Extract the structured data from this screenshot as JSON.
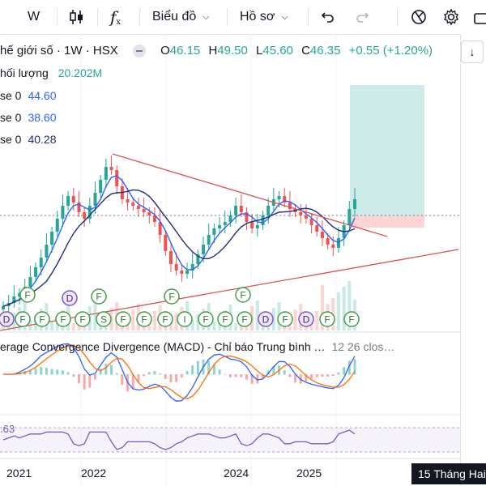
{
  "toolbar": {
    "interval": "W",
    "indicators_icon": "fx-icon",
    "layout_label": "Biểu đồ",
    "profile_label": "Hồ sơ"
  },
  "legend": {
    "symbol": "hế giới số · 1W · HSX",
    "open_label": "O",
    "open": "46.15",
    "high_label": "H",
    "high": "49.50",
    "low_label": "L",
    "low": "45.60",
    "close_label": "C",
    "close": "46.35",
    "change": "+0.55 (+1.20%)",
    "volume_label": "hối lượng",
    "volume": "20.202M"
  },
  "indicators": [
    {
      "label": "se 0",
      "value": "44.60",
      "color": "#2962ff"
    },
    {
      "label": "se 0",
      "value": "38.60",
      "color": "#2962ff"
    },
    {
      "label": "se 0",
      "value": "40.28",
      "color": "#1e2f7a"
    }
  ],
  "macd_label": "erage Convergence Divergence (MACD) - Chỉ báo Trung bình …",
  "macd_params": "12 26 clos…",
  "rsi_value": ".63",
  "x_axis": [
    "2021",
    "2022",
    "2024",
    "2025"
  ],
  "date_tag": "15 Tháng Hai",
  "colors": {
    "up": "#26a69a",
    "down": "#ef5350",
    "trend": "#d9534f",
    "ma": "#2962ff",
    "macd": "#2962ff",
    "signal": "#ff6d00",
    "rsi": "#7e57c2"
  },
  "chart_data": {
    "type": "candlestick",
    "x_ticks": [
      "2021",
      "2022",
      "2024",
      "2025"
    ],
    "price_close": [
      13,
      14,
      16,
      17,
      19,
      22,
      25,
      28,
      32,
      36,
      40,
      44,
      47,
      45,
      42,
      40,
      44,
      48,
      52,
      56,
      55,
      50,
      46,
      45,
      44,
      43,
      42,
      41,
      39,
      35,
      30,
      26,
      24,
      23,
      24,
      26,
      29,
      32,
      35,
      37,
      38,
      39,
      41,
      44,
      42,
      39,
      37,
      38,
      41,
      44,
      46,
      47,
      45,
      43,
      42,
      41,
      40,
      38,
      36,
      34,
      32,
      31,
      34,
      38,
      43,
      46
    ],
    "annotations": [
      "D",
      "F",
      "F",
      "F",
      "F",
      "S",
      "F",
      "F",
      "F",
      "I",
      "F",
      "F",
      "F",
      "D",
      "F"
    ]
  }
}
